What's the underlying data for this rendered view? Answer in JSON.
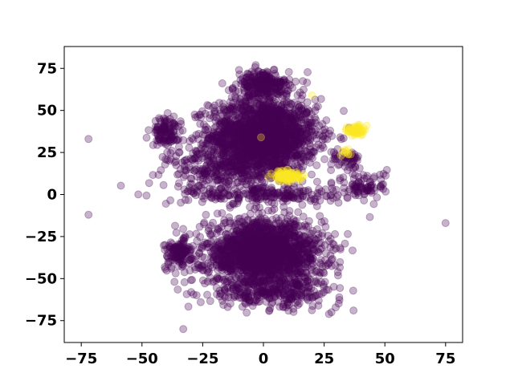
{
  "chart_data": {
    "type": "scatter",
    "title": "",
    "xlabel": "",
    "ylabel": "",
    "xlim": [
      -82,
      82
    ],
    "ylim": [
      -88,
      88
    ],
    "x_ticks": [
      -75,
      -50,
      -25,
      0,
      25,
      50,
      75
    ],
    "y_ticks": [
      -75,
      -50,
      -25,
      0,
      25,
      50,
      75
    ],
    "x_tick_labels": [
      "−75",
      "−50",
      "−25",
      "0",
      "25",
      "50",
      "75"
    ],
    "y_tick_labels": [
      "−75",
      "−50",
      "−25",
      "0",
      "25",
      "50",
      "75"
    ],
    "grid": false,
    "legend": "none",
    "marker_alpha": 0.3,
    "series": [
      {
        "color": "#440154",
        "clusters": [
          {
            "cx": 0,
            "cy": 35,
            "sx": 20,
            "sy": 20,
            "n": 1800
          },
          {
            "cx": 0,
            "cy": -35,
            "sx": 22,
            "sy": 18,
            "n": 1800
          },
          {
            "cx": -15,
            "cy": 15,
            "sx": 22,
            "sy": 12,
            "n": 300
          },
          {
            "cx": 0,
            "cy": 65,
            "sx": 10,
            "sy": 8,
            "n": 250
          },
          {
            "cx": 5,
            "cy": -58,
            "sx": 25,
            "sy": 8,
            "n": 250
          },
          {
            "cx": -40,
            "cy": 37,
            "sx": 5,
            "sy": 8,
            "n": 120
          },
          {
            "cx": -35,
            "cy": -35,
            "sx": 5,
            "sy": 8,
            "n": 120
          },
          {
            "cx": 0,
            "cy": 0,
            "sx": 30,
            "sy": 5,
            "n": 220
          },
          {
            "cx": 42,
            "cy": 5,
            "sx": 8,
            "sy": 8,
            "n": 80
          },
          {
            "cx": 35,
            "cy": 20,
            "sx": 6,
            "sy": 6,
            "n": 50
          }
        ],
        "points": [
          [
            -72,
            33
          ],
          [
            -72,
            -12
          ],
          [
            -33,
            -80
          ],
          [
            75,
            -17
          ],
          [
            28,
            -70
          ],
          [
            -20,
            50
          ]
        ]
      },
      {
        "color": "#fde725",
        "clusters": [
          {
            "cx": 10,
            "cy": 11,
            "sx": 5,
            "sy": 3,
            "n": 100
          },
          {
            "cx": 38,
            "cy": 38,
            "sx": 3,
            "sy": 3,
            "n": 60
          },
          {
            "cx": 34,
            "cy": 25,
            "sx": 2,
            "sy": 2,
            "n": 10
          }
        ],
        "points": [
          [
            20,
            59
          ],
          [
            -1,
            34
          ]
        ]
      }
    ]
  }
}
